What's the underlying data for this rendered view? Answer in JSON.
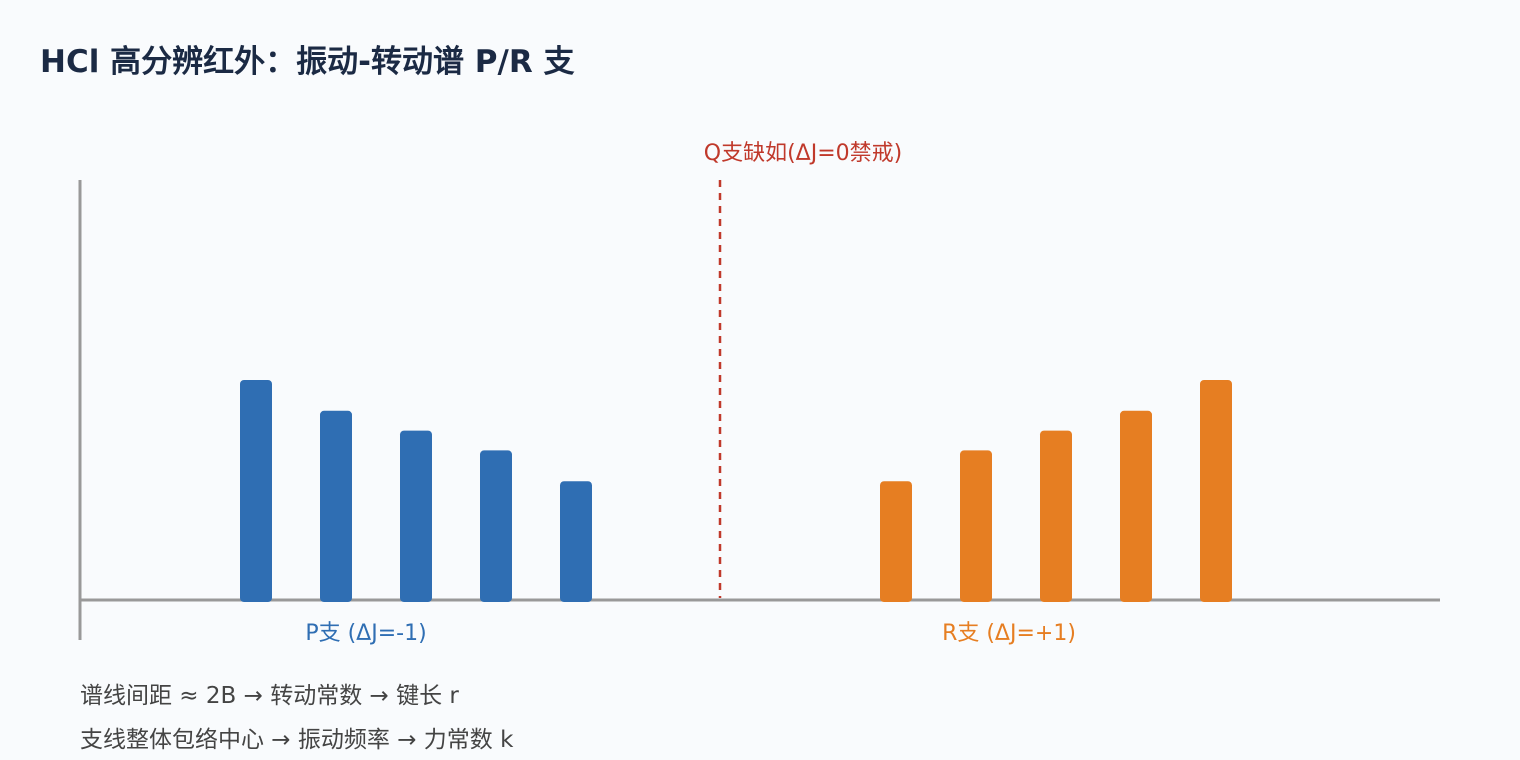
{
  "title": "HCl 高分辨红外：振动-转动谱 P/R 支",
  "chart_data": {
    "type": "bar",
    "title": "HCl 高分辨红外：振动-转动谱 P/R 支",
    "xlabel": "",
    "ylabel": "",
    "grid": false,
    "series": [
      {
        "name": "P支 (ΔJ=-1)",
        "color": "#2f6eb3",
        "values": [
          1.0,
          0.86,
          0.77,
          0.68,
          0.54
        ]
      },
      {
        "name": "R支 (ΔJ=+1)",
        "color": "#e67e22",
        "values": [
          0.54,
          0.68,
          0.77,
          0.86,
          1.0
        ]
      }
    ],
    "annotation": {
      "label": "Q支缺如(ΔJ=0禁戒)",
      "color": "#c0392b"
    },
    "axis_color": "#999999"
  },
  "notes": [
    "谱线间距 ≈ 2B → 转动常数 → 键长 r",
    "支线整体包络中心 → 振动频率 → 力常数 k"
  ]
}
